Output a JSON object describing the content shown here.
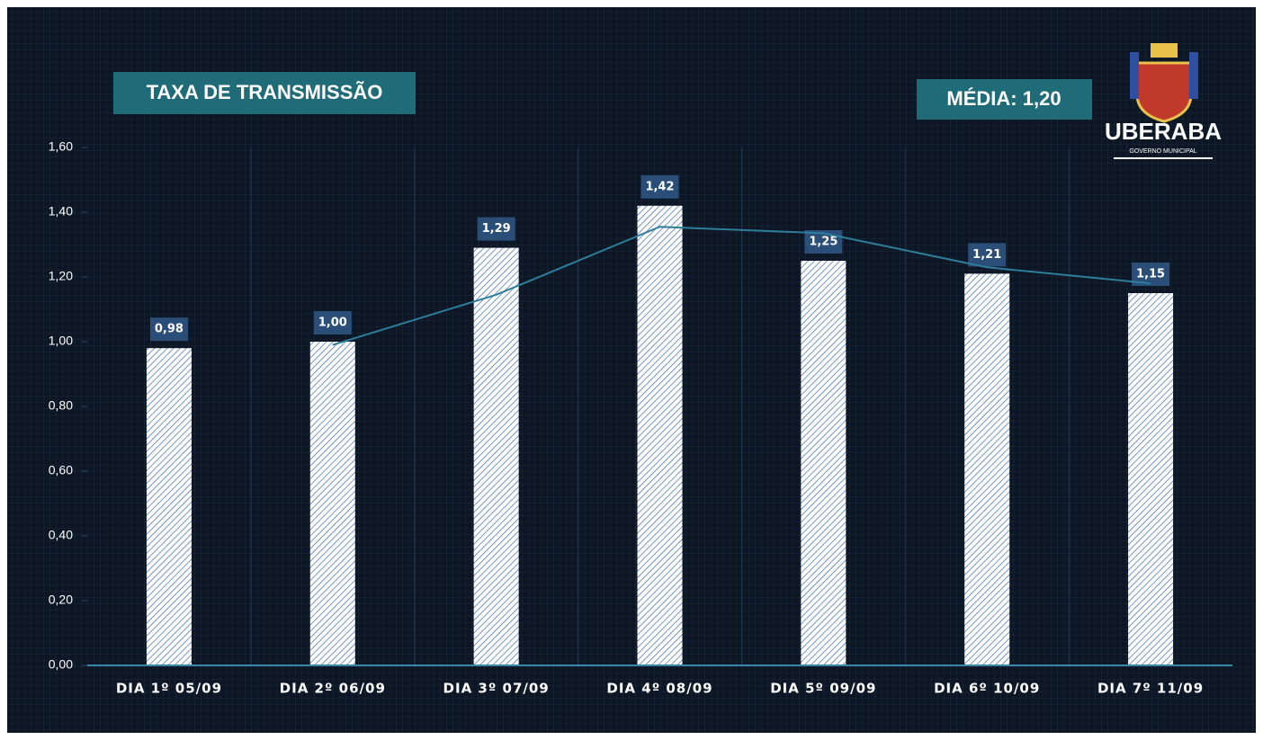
{
  "chart_data": {
    "type": "bar",
    "title": "TAXA DE TRANSMISSÃO",
    "annotations": [
      "MÉDIA: 1,20"
    ],
    "categories": [
      "DIA 1º 05/09",
      "DIA 2º 06/09",
      "DIA 3º 07/09",
      "DIA 4º 08/09",
      "DIA 5º 09/09",
      "DIA 6º 10/09",
      "DIA 7º 11/09"
    ],
    "series": [
      {
        "type": "bar",
        "color": "#ffffff",
        "values": [
          0.98,
          1.0,
          1.29,
          1.42,
          1.25,
          1.21,
          1.15
        ],
        "value_labels": [
          "0,98",
          "1,00",
          "1,29",
          "1,42",
          "1,25",
          "1,21",
          "1,15"
        ]
      },
      {
        "type": "line",
        "color": "#2e7d9a",
        "values": [
          null,
          0.99,
          1.145,
          1.355,
          1.335,
          1.23,
          1.18
        ]
      }
    ],
    "ylim": [
      0,
      1.6
    ],
    "yticks": [
      {
        "value": 0,
        "label": "0,00"
      },
      {
        "value": 0.2,
        "label": "0,20"
      },
      {
        "value": 0.4,
        "label": "0,40"
      },
      {
        "value": 0.6,
        "label": "0,60"
      },
      {
        "value": 0.8,
        "label": "0,80"
      },
      {
        "value": 1.0,
        "label": "1,00"
      },
      {
        "value": 1.2,
        "label": "1,20"
      },
      {
        "value": 1.4,
        "label": "1,40"
      },
      {
        "value": 1.6,
        "label": "1,60"
      }
    ],
    "grid": false
  },
  "logo": {
    "name": "UBERABA",
    "subtitle": "GOVERNO MUNICIPAL"
  }
}
